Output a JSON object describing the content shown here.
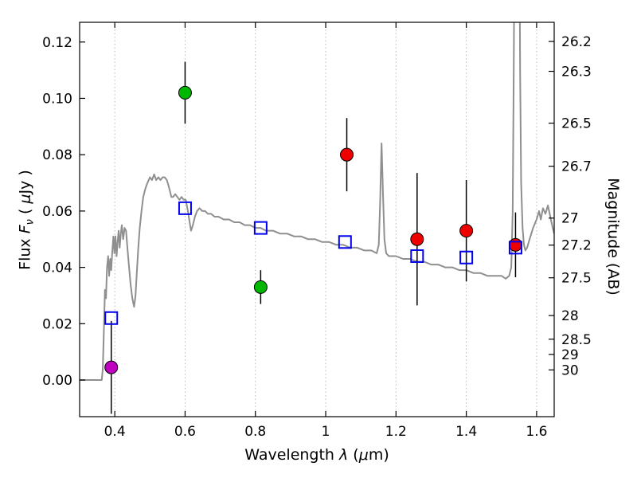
{
  "figure": {
    "background": "#ffffff",
    "xlabel": {
      "p1": "Wavelength  ",
      "p2": "λ",
      "p3": " (",
      "p4": "μ",
      "p5": "m)"
    },
    "ylabel_left": {
      "p1": "Flux  ",
      "p2": "F",
      "p3": "ν",
      "p4": "  ( ",
      "p5": "μ",
      "p6": "Jy )"
    },
    "ylabel_right": "Magnitude (AB)"
  },
  "chart_data": {
    "type": "line+scatter",
    "title": "",
    "xlabel": "Wavelength λ (μm)",
    "ylabel_left": "Flux Fν ( μJy )",
    "ylabel_right": "Magnitude (AB)",
    "xlim": [
      0.3,
      1.65
    ],
    "ylim": [
      -0.013,
      0.127
    ],
    "grid": {
      "axis": "x",
      "style": "dotted",
      "color": "#b8b8b8"
    },
    "x_ticks": {
      "values": [
        0.4,
        0.6,
        0.8,
        1.0,
        1.2,
        1.4,
        1.6
      ],
      "labels": [
        "0.4",
        "0.6",
        "0.8",
        "1",
        "1.2",
        "1.4",
        "1.6"
      ]
    },
    "y_ticks_left": {
      "values": [
        0.0,
        0.02,
        0.04,
        0.06,
        0.08,
        0.1,
        0.12
      ],
      "labels": [
        "0.00",
        "0.02",
        "0.04",
        "0.06",
        "0.08",
        "0.10",
        "0.12"
      ]
    },
    "y_ticks_right": [
      {
        "label": "26.2",
        "flux": 0.1202
      },
      {
        "label": "26.3",
        "flux": 0.1096
      },
      {
        "label": "26.5",
        "flux": 0.0912
      },
      {
        "label": "26.7",
        "flux": 0.0759
      },
      {
        "label": "27",
        "flux": 0.0575
      },
      {
        "label": "27.2",
        "flux": 0.0479
      },
      {
        "label": "27.5",
        "flux": 0.0363
      },
      {
        "label": "28",
        "flux": 0.0229
      },
      {
        "label": "28.5",
        "flux": 0.0145
      },
      {
        "label": "29",
        "flux": 0.0091
      },
      {
        "label": "30",
        "flux": 0.0036
      }
    ],
    "model_spectrum": {
      "name": "model spectrum",
      "color": "#8f8f8f",
      "linewidth": 2,
      "points": [
        [
          0.3,
          0.0
        ],
        [
          0.355,
          0.0
        ],
        [
          0.363,
          0.0
        ],
        [
          0.366,
          0.004
        ],
        [
          0.369,
          0.018
        ],
        [
          0.372,
          0.032
        ],
        [
          0.375,
          0.029
        ],
        [
          0.378,
          0.04
        ],
        [
          0.381,
          0.044
        ],
        [
          0.384,
          0.037
        ],
        [
          0.387,
          0.043
        ],
        [
          0.39,
          0.039
        ],
        [
          0.393,
          0.046
        ],
        [
          0.396,
          0.051
        ],
        [
          0.399,
          0.045
        ],
        [
          0.402,
          0.051
        ],
        [
          0.405,
          0.044
        ],
        [
          0.408,
          0.049
        ],
        [
          0.411,
          0.053
        ],
        [
          0.414,
          0.047
        ],
        [
          0.417,
          0.052
        ],
        [
          0.42,
          0.055
        ],
        [
          0.424,
          0.05
        ],
        [
          0.428,
          0.054
        ],
        [
          0.432,
          0.053
        ],
        [
          0.436,
          0.047
        ],
        [
          0.44,
          0.041
        ],
        [
          0.445,
          0.034
        ],
        [
          0.45,
          0.029
        ],
        [
          0.455,
          0.026
        ],
        [
          0.459,
          0.03
        ],
        [
          0.463,
          0.039
        ],
        [
          0.467,
          0.047
        ],
        [
          0.471,
          0.054
        ],
        [
          0.476,
          0.06
        ],
        [
          0.481,
          0.065
        ],
        [
          0.487,
          0.068
        ],
        [
          0.493,
          0.07
        ],
        [
          0.5,
          0.072
        ],
        [
          0.506,
          0.071
        ],
        [
          0.512,
          0.073
        ],
        [
          0.518,
          0.071
        ],
        [
          0.524,
          0.072
        ],
        [
          0.53,
          0.071
        ],
        [
          0.536,
          0.072
        ],
        [
          0.542,
          0.072
        ],
        [
          0.548,
          0.071
        ],
        [
          0.553,
          0.069
        ],
        [
          0.557,
          0.067
        ],
        [
          0.561,
          0.065
        ],
        [
          0.566,
          0.065
        ],
        [
          0.572,
          0.066
        ],
        [
          0.578,
          0.065
        ],
        [
          0.584,
          0.064
        ],
        [
          0.59,
          0.065
        ],
        [
          0.596,
          0.064
        ],
        [
          0.602,
          0.064
        ],
        [
          0.608,
          0.06
        ],
        [
          0.613,
          0.056
        ],
        [
          0.617,
          0.053
        ],
        [
          0.622,
          0.055
        ],
        [
          0.628,
          0.058
        ],
        [
          0.634,
          0.06
        ],
        [
          0.641,
          0.061
        ],
        [
          0.649,
          0.06
        ],
        [
          0.657,
          0.06
        ],
        [
          0.665,
          0.059
        ],
        [
          0.674,
          0.059
        ],
        [
          0.684,
          0.058
        ],
        [
          0.695,
          0.058
        ],
        [
          0.71,
          0.057
        ],
        [
          0.725,
          0.057
        ],
        [
          0.74,
          0.056
        ],
        [
          0.755,
          0.056
        ],
        [
          0.77,
          0.055
        ],
        [
          0.785,
          0.055
        ],
        [
          0.8,
          0.054
        ],
        [
          0.815,
          0.054
        ],
        [
          0.83,
          0.053
        ],
        [
          0.85,
          0.053
        ],
        [
          0.87,
          0.052
        ],
        [
          0.89,
          0.052
        ],
        [
          0.91,
          0.051
        ],
        [
          0.93,
          0.051
        ],
        [
          0.95,
          0.05
        ],
        [
          0.97,
          0.05
        ],
        [
          0.99,
          0.049
        ],
        [
          1.01,
          0.049
        ],
        [
          1.03,
          0.048
        ],
        [
          1.05,
          0.048
        ],
        [
          1.07,
          0.047
        ],
        [
          1.09,
          0.047
        ],
        [
          1.11,
          0.046
        ],
        [
          1.13,
          0.046
        ],
        [
          1.145,
          0.045
        ],
        [
          1.151,
          0.048
        ],
        [
          1.155,
          0.064
        ],
        [
          1.159,
          0.084
        ],
        [
          1.163,
          0.066
        ],
        [
          1.167,
          0.05
        ],
        [
          1.172,
          0.045
        ],
        [
          1.18,
          0.044
        ],
        [
          1.2,
          0.044
        ],
        [
          1.22,
          0.043
        ],
        [
          1.24,
          0.043
        ],
        [
          1.26,
          0.042
        ],
        [
          1.28,
          0.042
        ],
        [
          1.3,
          0.041
        ],
        [
          1.32,
          0.041
        ],
        [
          1.34,
          0.04
        ],
        [
          1.36,
          0.04
        ],
        [
          1.38,
          0.039
        ],
        [
          1.4,
          0.039
        ],
        [
          1.42,
          0.038
        ],
        [
          1.44,
          0.038
        ],
        [
          1.46,
          0.037
        ],
        [
          1.48,
          0.037
        ],
        [
          1.5,
          0.037
        ],
        [
          1.512,
          0.036
        ],
        [
          1.522,
          0.037
        ],
        [
          1.528,
          0.04
        ],
        [
          1.532,
          0.06
        ],
        [
          1.535,
          0.11
        ],
        [
          1.538,
          0.18
        ],
        [
          1.541,
          0.26
        ],
        [
          1.546,
          0.27
        ],
        [
          1.55,
          0.19
        ],
        [
          1.553,
          0.11
        ],
        [
          1.556,
          0.07
        ],
        [
          1.56,
          0.054
        ],
        [
          1.564,
          0.048
        ],
        [
          1.568,
          0.046
        ],
        [
          1.573,
          0.047
        ],
        [
          1.58,
          0.05
        ],
        [
          1.59,
          0.054
        ],
        [
          1.6,
          0.057
        ],
        [
          1.607,
          0.06
        ],
        [
          1.612,
          0.057
        ],
        [
          1.618,
          0.061
        ],
        [
          1.625,
          0.059
        ],
        [
          1.632,
          0.062
        ],
        [
          1.639,
          0.058
        ],
        [
          1.646,
          0.054
        ],
        [
          1.65,
          0.052
        ]
      ]
    },
    "observed_photometry": [
      {
        "color": "#bf00bf",
        "x": 0.39,
        "y": 0.0045,
        "yerr": 0.0165
      },
      {
        "color": "#00b800",
        "x": 0.6,
        "y": 0.102,
        "yerr": 0.011
      },
      {
        "color": "#00b800",
        "x": 0.815,
        "y": 0.033,
        "yerr": 0.006
      },
      {
        "color": "#ee0000",
        "x": 1.06,
        "y": 0.08,
        "yerr": 0.013
      },
      {
        "color": "#ee0000",
        "x": 1.26,
        "y": 0.05,
        "yerr": 0.0235
      },
      {
        "color": "#ee0000",
        "x": 1.4,
        "y": 0.053,
        "yerr": 0.018
      },
      {
        "color": "#ee0000",
        "x": 1.54,
        "y": 0.048,
        "yerr": 0.0115
      }
    ],
    "model_photometry": {
      "color": "#0000ee",
      "marker": "square-open",
      "points": [
        [
          0.39,
          0.022
        ],
        [
          0.6,
          0.061
        ],
        [
          0.815,
          0.054
        ],
        [
          1.055,
          0.049
        ],
        [
          1.26,
          0.044
        ],
        [
          1.4,
          0.0435
        ],
        [
          1.54,
          0.047
        ]
      ]
    }
  }
}
